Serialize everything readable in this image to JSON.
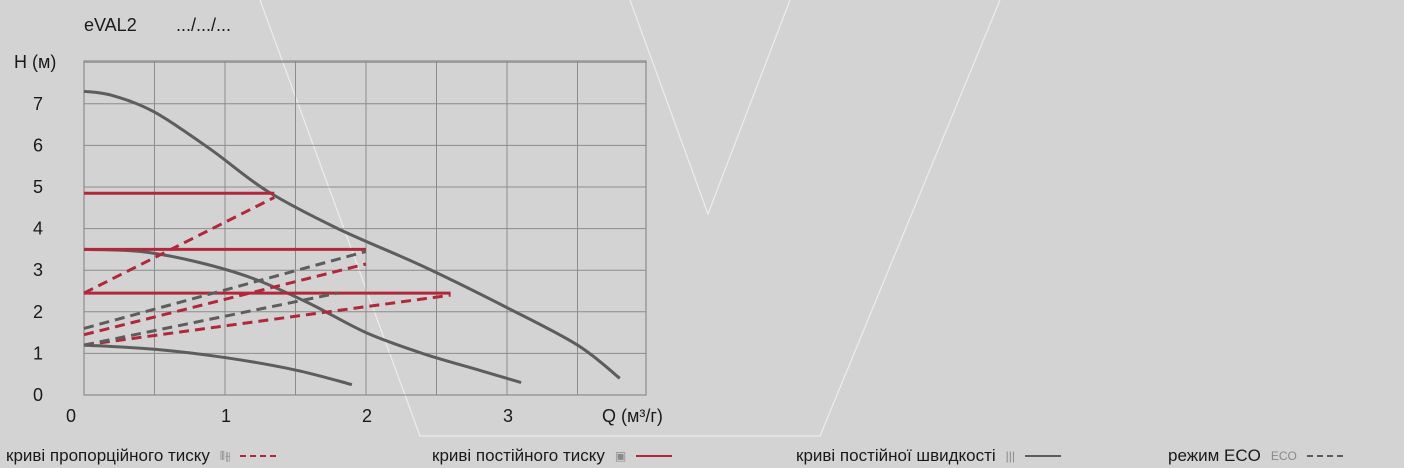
{
  "header": {
    "model": "eVAL2",
    "pattern": ".../.../..."
  },
  "chart_data": {
    "type": "line",
    "xlabel": "Q (м³/г)",
    "ylabel": "H (м)",
    "xlim": [
      0,
      4.2
    ],
    "ylim": [
      0,
      8
    ],
    "x_ticks": [
      0,
      1,
      2,
      3
    ],
    "y_ticks": [
      0,
      1,
      2,
      3,
      4,
      5,
      6,
      7
    ],
    "grid": true,
    "series": [
      {
        "style": "gray-solid",
        "points": [
          [
            0,
            7.3
          ],
          [
            0.2,
            7.2
          ],
          [
            0.5,
            6.8
          ],
          [
            0.9,
            5.9
          ],
          [
            1.3,
            4.9
          ],
          [
            1.8,
            4.0
          ],
          [
            2.4,
            3.1
          ],
          [
            3.0,
            2.1
          ],
          [
            3.5,
            1.2
          ],
          [
            3.8,
            0.4
          ]
        ]
      },
      {
        "style": "gray-solid",
        "points": [
          [
            0,
            3.5
          ],
          [
            0.4,
            3.45
          ],
          [
            0.8,
            3.2
          ],
          [
            1.2,
            2.8
          ],
          [
            1.6,
            2.2
          ],
          [
            2.0,
            1.5
          ],
          [
            2.4,
            1.0
          ],
          [
            2.8,
            0.6
          ],
          [
            3.1,
            0.3
          ]
        ]
      },
      {
        "style": "gray-solid",
        "points": [
          [
            0,
            1.2
          ],
          [
            0.5,
            1.1
          ],
          [
            1.0,
            0.9
          ],
          [
            1.5,
            0.6
          ],
          [
            1.9,
            0.25
          ]
        ]
      },
      {
        "style": "red-solid",
        "points": [
          [
            0,
            4.85
          ],
          [
            1.35,
            4.85
          ]
        ]
      },
      {
        "style": "red-solid",
        "points": [
          [
            0,
            3.5
          ],
          [
            2.0,
            3.5
          ]
        ]
      },
      {
        "style": "red-solid",
        "points": [
          [
            0,
            2.45
          ],
          [
            2.6,
            2.45
          ]
        ]
      },
      {
        "style": "red-dash",
        "points": [
          [
            0,
            2.45
          ],
          [
            1.35,
            4.75
          ]
        ]
      },
      {
        "style": "red-dash",
        "points": [
          [
            0,
            1.45
          ],
          [
            2.0,
            3.15
          ]
        ]
      },
      {
        "style": "red-dash",
        "points": [
          [
            0,
            1.2
          ],
          [
            2.6,
            2.4
          ]
        ]
      },
      {
        "style": "gray-dash",
        "points": [
          [
            0,
            1.6
          ],
          [
            2.0,
            3.45
          ]
        ]
      },
      {
        "style": "gray-dash",
        "points": [
          [
            0,
            1.2
          ],
          [
            1.8,
            2.45
          ]
        ]
      }
    ]
  },
  "legend": [
    {
      "label": "криві пропорційного тиску",
      "icon": "⫴⫵",
      "style": "red-dash"
    },
    {
      "label": "криві постійного тиску",
      "icon": "▣",
      "style": "red-solid"
    },
    {
      "label": "криві постійної швидкості",
      "icon": "|||",
      "style": "gray-solid"
    },
    {
      "label": "режим ECO",
      "icon": "ECO",
      "style": "gray-dash"
    }
  ],
  "colors": {
    "red": "#b0283a",
    "gray": "#5d5d5d",
    "grid": "#8c8c8c",
    "background": "#d3d3d3"
  }
}
